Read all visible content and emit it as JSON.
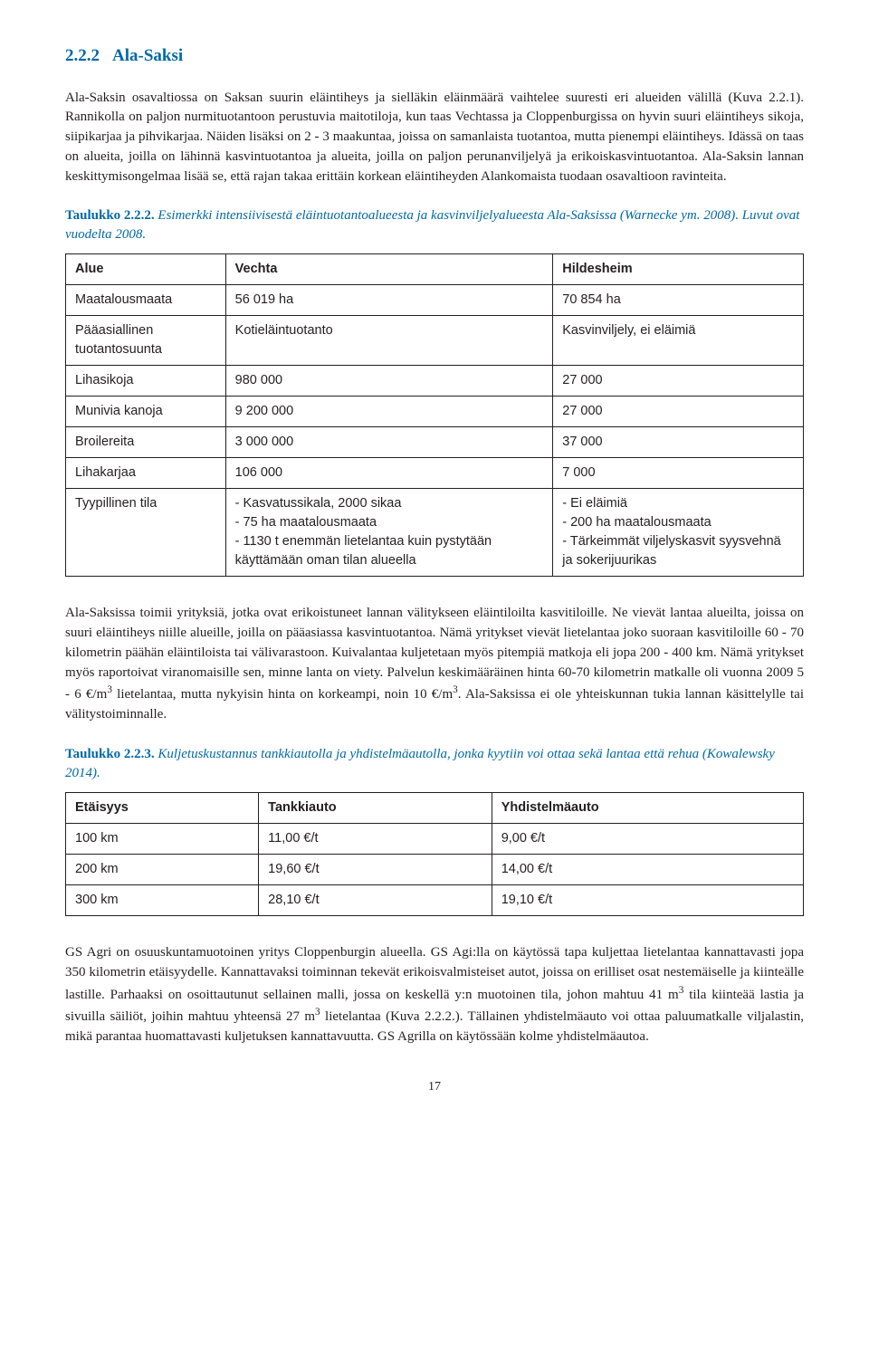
{
  "heading": {
    "number": "2.2.2",
    "title": "Ala-Saksi",
    "color": "#0069a6"
  },
  "para1": "Ala-Saksin osavaltiossa on Saksan suurin eläintiheys ja sielläkin eläinmäärä vaihtelee suuresti eri alueiden välillä (Kuva 2.2.1). Rannikolla on paljon nurmituotantoon perustuvia maitotiloja, kun taas Vechtassa ja Cloppenburgissa on hyvin suuri eläintiheys sikoja, siipikarjaa ja pihvikarjaa. Näiden lisäksi on 2 - 3 maakuntaa, joissa on samanlaista tuotantoa, mutta pienempi eläintiheys. Idässä on taas on alueita, joilla on lähinnä kasvintuotantoa ja alueita, joilla on paljon perunanviljelyä ja erikoiskasvintuotantoa. Ala-Saksin lannan keskittymisongelmaa lisää se, että rajan takaa erittäin korkean eläintiheyden Alankomaista tuodaan osavaltioon ravinteita.",
  "table1": {
    "caption_lead": "Taulukko 2.2.2.",
    "caption_rest": " Esimerkki intensiivisestä eläintuotantoalueesta ja kasvinviljelyalueesta Ala-Saksissa (Warnecke ym. 2008). Luvut ovat vuodelta 2008.",
    "caption_color": "#0069a6",
    "header": [
      "Alue",
      "Vechta",
      "Hildesheim"
    ],
    "rows": [
      [
        "Maatalousmaata",
        "56 019 ha",
        "70 854 ha"
      ],
      [
        "Pääasiallinen tuotantosuunta",
        "Kotieläintuotanto",
        "Kasvinviljely, ei eläimiä"
      ],
      [
        "Lihasikoja",
        "980 000",
        "27 000"
      ],
      [
        "Munivia kanoja",
        "9 200 000",
        "27 000"
      ],
      [
        "Broilereita",
        "3 000 000",
        "37 000"
      ],
      [
        "Lihakarjaa",
        "106 000",
        "7 000"
      ],
      [
        "Tyypillinen tila",
        "- Kasvatussikala, 2000 sikaa\n- 75 ha maatalousmaata\n- 1130 t enemmän lietelantaa kuin pystytään käyttämään oman tilan alueella",
        "- Ei eläimiä\n- 200 ha maatalousmaata\n- Tärkeimmät viljelyskasvit syysvehnä ja sokerijuurikas"
      ]
    ]
  },
  "para2_pre": "Ala-Saksissa toimii yrityksiä, jotka ovat erikoistuneet lannan välitykseen eläintiloilta kasvitiloille. Ne vievät lantaa alueilta, joissa on suuri eläintiheys niille alueille, joilla on pääasiassa kasvintuotantoa. Nämä yritykset vievät lietelantaa joko suoraan kasvitiloille 60 - 70 kilometrin päähän eläintiloista tai välivarastoon. Kuivalantaa kuljetetaan myös pitempiä matkoja eli jopa 200 - 400 km. Nämä yritykset myös raportoivat viranomaisille sen, minne lanta on viety. Palvelun keskimääräinen hinta 60-70 kilometrin matkalle oli vuonna 2009  5 - 6 €/m",
  "para2_mid": " lietelantaa, mutta nykyisin hinta on korkeampi, noin 10 €/m",
  "para2_post": ". Ala-Saksissa ei ole yhteiskunnan tukia lannan käsittelylle tai välitystoiminnalle.",
  "table2": {
    "caption_lead": "Taulukko 2.2.3.",
    "caption_rest": " Kuljetuskustannus tankkiautolla ja yhdistelmäautolla, jonka kyytiin voi ottaa sekä lantaa että rehua (Kowalewsky 2014).",
    "caption_color": "#0069a6",
    "header": [
      "Etäisyys",
      "Tankkiauto",
      "Yhdistelmäauto"
    ],
    "rows": [
      [
        "100 km",
        "11,00 €/t",
        "9,00 €/t"
      ],
      [
        "200 km",
        "19,60 €/t",
        "14,00 €/t"
      ],
      [
        "300 km",
        "28,10 €/t",
        "19,10 €/t"
      ]
    ]
  },
  "para3_pre": "GS Agri on osuuskuntamuotoinen yritys Cloppenburgin alueella. GS Agi:lla on käytössä tapa kuljettaa lietelantaa kannattavasti jopa 350 kilometrin etäisyydelle. Kannattavaksi toiminnan tekevät erikoisvalmisteiset autot, joissa on erilliset osat nestemäiselle ja kiinteälle lastille. Parhaaksi on osoittautunut sellainen malli, jossa on keskellä y:n muotoinen tila, johon mahtuu 41 m",
  "para3_mid": " tila kiinteää lastia ja sivuilla säiliöt,  joihin mahtuu yhteensä 27 m",
  "para3_post": " lietelantaa (Kuva 2.2.2.). Tällainen yhdistelmäauto voi ottaa paluumatkalle viljalastin, mikä parantaa huomattavasti kuljetuksen kannattavuutta. GS Agrilla on käytössään kolme yhdistelmäautoa.",
  "page_number": "17"
}
